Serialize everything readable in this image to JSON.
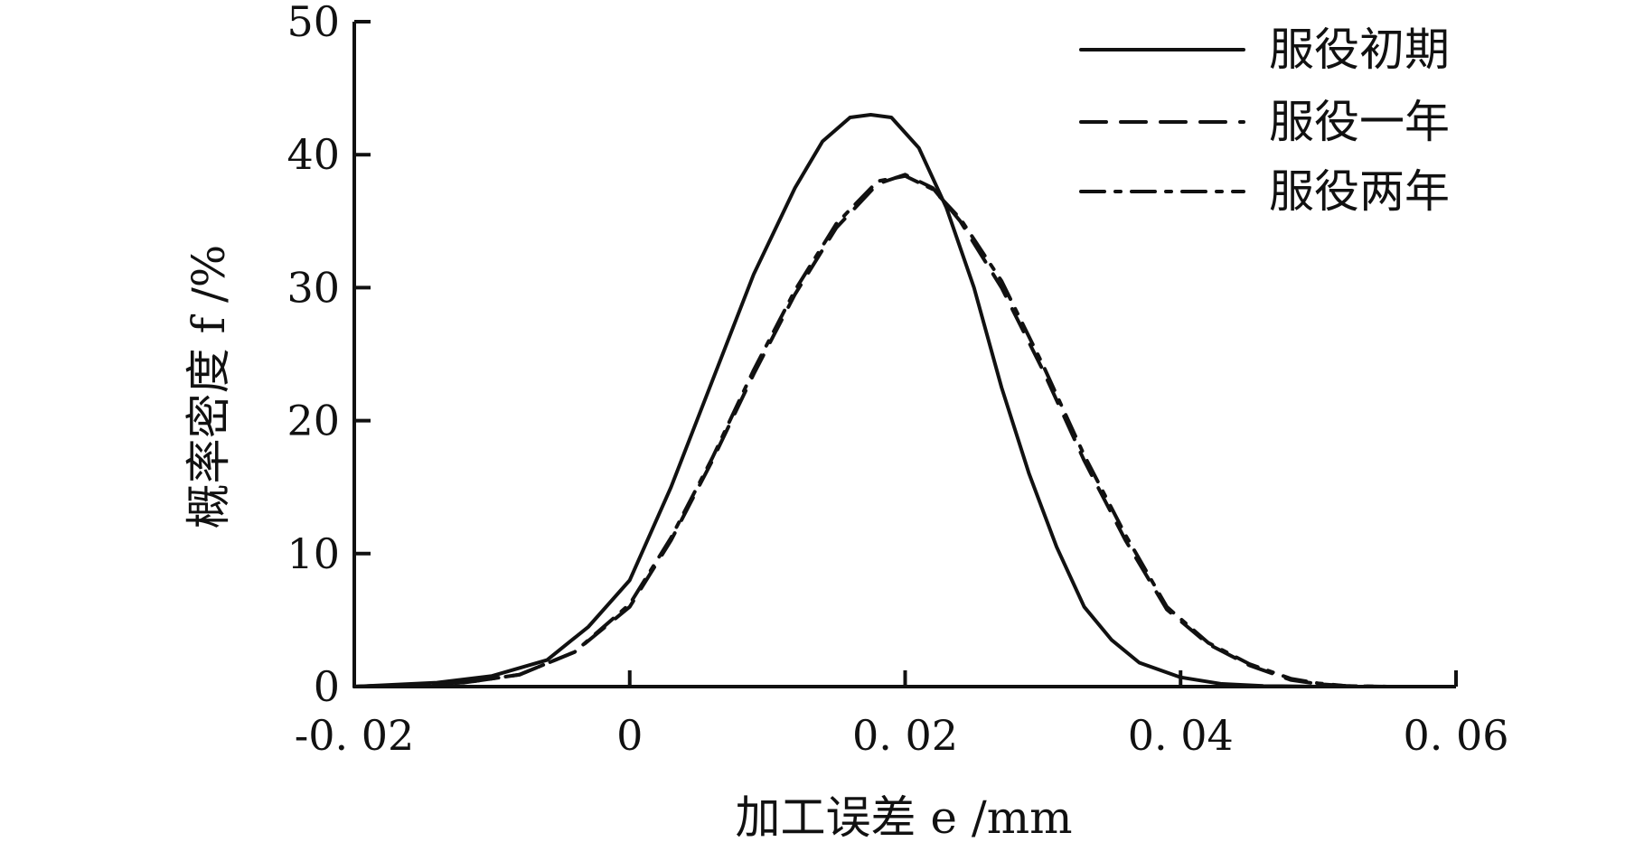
{
  "chart_data": {
    "type": "line",
    "xlabel": "加工误差 e /mm",
    "ylabel": "概率密度 f /%",
    "xlim": [
      -0.02,
      0.06
    ],
    "ylim": [
      0,
      50
    ],
    "xticks": [
      "-0. 02",
      "0",
      "0. 02",
      "0. 04",
      "0. 06"
    ],
    "yticks": [
      "0",
      "10",
      "20",
      "30",
      "40",
      "50"
    ],
    "legend_position": "top-right",
    "grid": false,
    "series": [
      {
        "name": "服役初期",
        "style": "solid",
        "color": "#111111",
        "x": [
          -0.02,
          -0.014,
          -0.01,
          -0.006,
          -0.003,
          0,
          0.003,
          0.006,
          0.009,
          0.012,
          0.014,
          0.016,
          0.0175,
          0.019,
          0.021,
          0.023,
          0.025,
          0.027,
          0.029,
          0.031,
          0.033,
          0.035,
          0.037,
          0.04,
          0.043,
          0.046,
          0.05
        ],
        "y": [
          0,
          0.3,
          0.8,
          2,
          4.5,
          8,
          15,
          23,
          31,
          37.5,
          41,
          42.8,
          43,
          42.8,
          40.5,
          36,
          30,
          22.5,
          16,
          10.5,
          6,
          3.5,
          1.8,
          0.7,
          0.2,
          0.05,
          0
        ]
      },
      {
        "name": "服役一年",
        "style": "dashed",
        "color": "#111111",
        "x": [
          -0.02,
          -0.012,
          -0.008,
          -0.004,
          0,
          0.003,
          0.006,
          0.009,
          0.012,
          0.015,
          0.018,
          0.02,
          0.022,
          0.024,
          0.027,
          0.03,
          0.033,
          0.036,
          0.039,
          0.042,
          0.045,
          0.048,
          0.05,
          0.052,
          0.055
        ],
        "y": [
          0,
          0.3,
          0.9,
          2.6,
          6,
          11,
          17,
          23.5,
          29.5,
          34.5,
          37.8,
          38.5,
          37.5,
          35,
          30,
          23.8,
          17,
          11,
          5.8,
          3.2,
          1.6,
          0.5,
          0.2,
          0.05,
          0
        ]
      },
      {
        "name": "服役两年",
        "style": "dashdot",
        "color": "#111111",
        "x": [
          -0.02,
          -0.012,
          -0.008,
          -0.004,
          0,
          0.003,
          0.006,
          0.009,
          0.012,
          0.015,
          0.018,
          0.02,
          0.022,
          0.024,
          0.027,
          0.03,
          0.033,
          0.036,
          0.039,
          0.042,
          0.045,
          0.048,
          0.05,
          0.052,
          0.055
        ],
        "y": [
          0,
          0.3,
          0.9,
          2.6,
          6.2,
          11.2,
          17.2,
          23.8,
          29.8,
          34.8,
          38,
          38.4,
          37.4,
          35.2,
          30.5,
          24.2,
          17.4,
          11.4,
          6,
          3.3,
          1.7,
          0.6,
          0.25,
          0.05,
          0
        ]
      }
    ]
  }
}
